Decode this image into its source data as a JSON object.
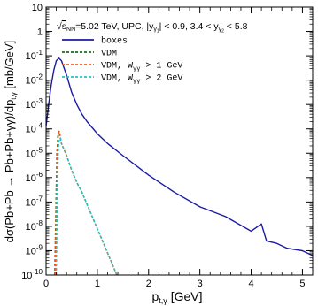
{
  "chart_data": {
    "type": "line",
    "annotation": {
      "sqrt": "s",
      "sqrt_sub": "NN",
      "energy": "=5.02 TeV, UPC, ",
      "ycut1_pre": "|y",
      "ycut1_sub": "γ",
      "ycut1_sub2": "1",
      "ycut1_post": "| < 0.9, 3.4 < y",
      "ycut2_sub": "γ",
      "ycut2_sub2": "2",
      "ycut2_post": " < 5.8"
    },
    "xlabel": {
      "main": "p",
      "sub": "t,γ",
      "unit": " [GeV]"
    },
    "ylabel": "dσ(Pb+Pb → Pb+Pb+γγ)/dp",
    "ylabel_sub": "t,γ",
    "ylabel_unit": "  [mb/GeV]",
    "xlim": [
      0,
      5.2
    ],
    "ylim_log10": [
      -10,
      1
    ],
    "x_ticks": [
      "0",
      "1",
      "2",
      "3",
      "4",
      "5"
    ],
    "y_ticks": [
      {
        "mant": "10",
        "exp": ""
      },
      {
        "mant": "1",
        "exp": ""
      },
      {
        "mant": "10",
        "exp": "-1"
      },
      {
        "mant": "10",
        "exp": "-2"
      },
      {
        "mant": "10",
        "exp": "-3"
      },
      {
        "mant": "10",
        "exp": "-4"
      },
      {
        "mant": "10",
        "exp": "-5"
      },
      {
        "mant": "10",
        "exp": "-6"
      },
      {
        "mant": "10",
        "exp": "-7"
      },
      {
        "mant": "10",
        "exp": "-8"
      },
      {
        "mant": "10",
        "exp": "-9"
      },
      {
        "mant": "10",
        "exp": "-10"
      }
    ],
    "legend_position": "upper-left",
    "series": [
      {
        "name": "boxes",
        "label_main": "boxes",
        "label_sub": "",
        "label_post": "",
        "color": "#1a1aa6",
        "dash": "",
        "x": [
          0.0,
          0.05,
          0.1,
          0.15,
          0.2,
          0.25,
          0.3,
          0.4,
          0.5,
          0.6,
          0.7,
          0.8,
          1.0,
          1.2,
          1.5,
          2.0,
          2.5,
          3.0,
          3.5,
          4.0,
          4.2,
          4.3,
          4.5,
          4.7,
          5.0,
          5.2
        ],
        "log10y": [
          -3.9,
          -3.0,
          -2.2,
          -1.6,
          -1.2,
          -1.1,
          -1.2,
          -1.8,
          -2.5,
          -3.0,
          -3.4,
          -3.7,
          -4.2,
          -4.6,
          -5.1,
          -5.9,
          -6.6,
          -7.2,
          -7.6,
          -8.2,
          -7.9,
          -8.6,
          -8.7,
          -8.9,
          -9.0,
          -9.2
        ]
      },
      {
        "name": "VDM",
        "label_main": "VDM",
        "label_sub": "",
        "label_post": "",
        "color": "#1a6b1a",
        "dash": "3,2",
        "x": [
          0.17,
          0.19,
          0.21,
          0.23,
          0.25,
          0.27,
          0.3,
          0.4,
          0.5,
          0.6,
          0.7,
          0.8,
          0.9,
          1.0,
          1.1,
          1.2,
          1.3,
          1.38
        ],
        "log10y": [
          -10,
          -7.5,
          -5.0,
          -4.3,
          -4.1,
          -4.3,
          -4.6,
          -5.1,
          -5.7,
          -6.2,
          -6.6,
          -7.1,
          -7.6,
          -8.1,
          -8.6,
          -9.1,
          -9.6,
          -10
        ]
      },
      {
        "name": "VDM, W > 1 GeV",
        "label_main": "VDM, W",
        "label_sub": "γγ",
        "label_post": " > 1 GeV",
        "color": "#ff5a1a",
        "dash": "3,2",
        "x": [
          0.18,
          0.2,
          0.22,
          0.24,
          0.26,
          0.28,
          0.3,
          0.4,
          0.5,
          0.6,
          0.7,
          0.8,
          0.9,
          1.0,
          1.1,
          1.2,
          1.3,
          1.38
        ],
        "log10y": [
          -10,
          -7.0,
          -5.0,
          -4.2,
          -4.1,
          -4.3,
          -4.6,
          -5.1,
          -5.7,
          -6.2,
          -6.6,
          -7.1,
          -7.6,
          -8.1,
          -8.6,
          -9.1,
          -9.6,
          -10
        ]
      },
      {
        "name": "VDM, W > 2 GeV",
        "label_main": "VDM, W",
        "label_sub": "γγ",
        "label_post": " > 2 GeV",
        "color": "#22c4c4",
        "dash": "3,2",
        "x": [
          0.2,
          0.22,
          0.24,
          0.26,
          0.28,
          0.3,
          0.4,
          0.5,
          0.6,
          0.7,
          0.8,
          0.9,
          1.0,
          1.1,
          1.2,
          1.3,
          1.38
        ],
        "log10y": [
          -10,
          -6.5,
          -4.8,
          -4.4,
          -4.4,
          -4.6,
          -5.1,
          -5.7,
          -6.2,
          -6.6,
          -7.1,
          -7.6,
          -8.1,
          -8.6,
          -9.1,
          -9.6,
          -10
        ]
      }
    ]
  }
}
